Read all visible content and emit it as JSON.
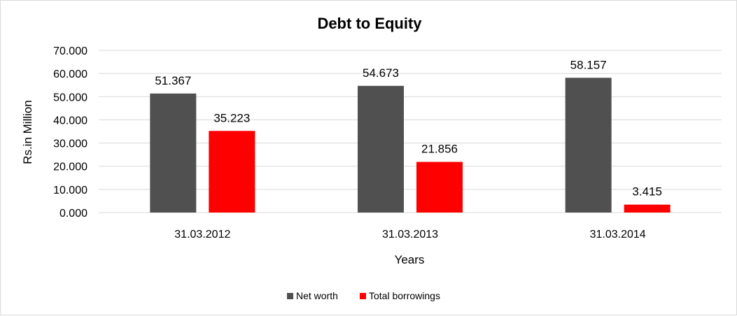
{
  "chart_data": {
    "type": "bar",
    "title": "Debt to Equity",
    "title_color": "#ff0000",
    "xlabel": "Years",
    "ylabel": "Rs.in Million",
    "categories": [
      "31.03.2012",
      "31.03.2013",
      "31.03.2014"
    ],
    "series": [
      {
        "name": "Net worth",
        "color": "#505050",
        "values": [
          51.367,
          54.673,
          58.157
        ],
        "labels": [
          "51.367",
          "54.673",
          "58.157"
        ]
      },
      {
        "name": "Total borrowings",
        "color": "#ff0000",
        "values": [
          35.223,
          21.856,
          3.415
        ],
        "labels": [
          "35.223",
          "21.856",
          "3.415"
        ]
      }
    ],
    "ylim": [
      0,
      70
    ],
    "yticks": [
      0,
      10,
      20,
      30,
      40,
      50,
      60,
      70
    ],
    "ytick_labels": [
      "0.000",
      "10.000",
      "20.000",
      "30.000",
      "40.000",
      "50.000",
      "60.000",
      "70.000"
    ],
    "grid": true,
    "legend_position": "bottom"
  }
}
